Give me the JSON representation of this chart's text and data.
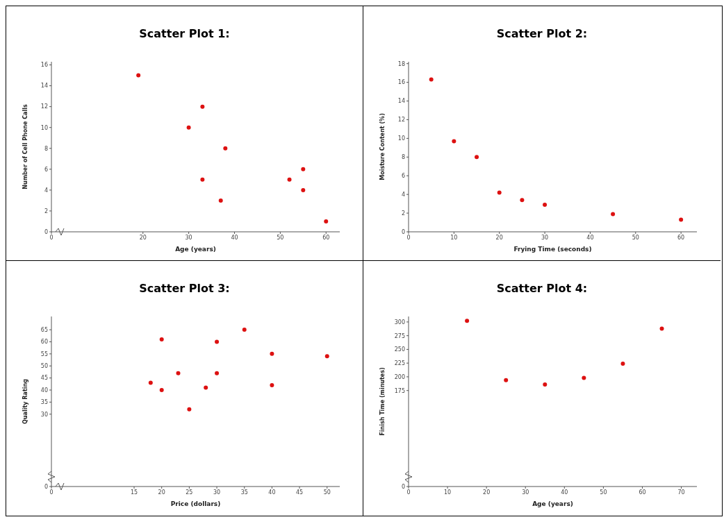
{
  "chart_data": [
    {
      "type": "scatter",
      "title": "Scatter Plot 1:",
      "xlabel": "Age (years)",
      "ylabel": "Number of Cell Phone Calls",
      "marker": "circle",
      "color": "#dd1111",
      "x": [
        19,
        30,
        33,
        33,
        37,
        38,
        52,
        55,
        55,
        60
      ],
      "values": [
        15,
        10,
        12,
        5,
        3,
        8,
        5,
        6,
        4,
        1
      ],
      "xlim": [
        0,
        63
      ],
      "xticks": [
        0,
        20,
        30,
        40,
        50,
        60
      ],
      "ylim": [
        0,
        16.3
      ],
      "yticks": [
        0,
        2,
        4,
        6,
        8,
        10,
        12,
        14,
        16
      ]
    },
    {
      "type": "scatter",
      "title": "Scatter Plot 2:",
      "xlabel": "Frying Time (seconds)",
      "ylabel": "Moisture Content (%)",
      "marker": "circle",
      "color": "#dd1111",
      "x": [
        5,
        10,
        15,
        20,
        25,
        30,
        45,
        60
      ],
      "values": [
        16.3,
        9.7,
        8.0,
        4.2,
        3.4,
        2.9,
        1.9,
        1.3
      ],
      "xlim": [
        0,
        63.5
      ],
      "xticks": [
        0,
        10,
        20,
        30,
        40,
        50,
        60
      ],
      "ylim": [
        0,
        18.2
      ],
      "yticks": [
        0,
        2,
        4,
        6,
        8,
        10,
        12,
        14,
        16,
        18
      ]
    },
    {
      "type": "scatter",
      "title": "Scatter Plot 3:",
      "xlabel": "Price (dollars)",
      "ylabel": "Quality Rating",
      "marker": "circle",
      "color": "#dd1111",
      "x": [
        18,
        20,
        20,
        23,
        25,
        28,
        30,
        30,
        35,
        40,
        40,
        50
      ],
      "values": [
        43,
        61,
        40,
        47,
        32,
        41,
        60,
        47,
        65,
        55,
        42,
        54
      ],
      "xlim": [
        0,
        52.3
      ],
      "xticks": [
        0,
        15,
        20,
        25,
        30,
        35,
        40,
        45,
        50
      ],
      "ylim": [
        0,
        70.5
      ],
      "yticks": [
        0,
        30,
        35,
        40,
        45,
        50,
        55,
        60,
        65
      ]
    },
    {
      "type": "scatter",
      "title": "Scatter Plot 4:",
      "xlabel": "Age (years)",
      "ylabel": "Finish Time (minutes)",
      "marker": "circle",
      "color": "#dd1111",
      "x": [
        15,
        25,
        35,
        45,
        55,
        65
      ],
      "values": [
        302,
        194,
        186,
        198,
        224,
        288
      ],
      "xlim": [
        0,
        74
      ],
      "xticks": [
        0,
        10,
        20,
        30,
        40,
        50,
        60,
        70
      ],
      "ylim": [
        0,
        310
      ],
      "yticks": [
        0,
        175,
        200,
        225,
        250,
        275,
        300
      ]
    }
  ]
}
